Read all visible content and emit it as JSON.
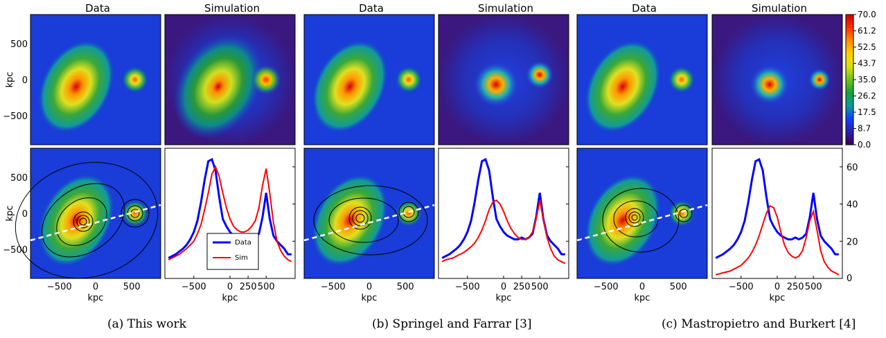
{
  "figure": {
    "column_titles": [
      "Data",
      "Simulation"
    ],
    "x_axis_label": "kpc",
    "y_axis_label": "kpc",
    "map_ticks": [
      "−500",
      "0",
      "500"
    ],
    "profile_x_ticks": [
      "−500",
      "0",
      "250",
      "500"
    ],
    "profile_x_tick_values": [
      -500,
      0,
      250,
      500
    ],
    "map_tick_values": [
      -500,
      0,
      500
    ]
  },
  "colorbar": {
    "ticks": [
      "70.0",
      "61.2",
      "52.5",
      "43.7",
      "35.0",
      "26.2",
      "17.5",
      "8.7",
      "0.0"
    ],
    "range": [
      0,
      70
    ]
  },
  "profile_y_ticks": [
    "20",
    "40",
    "60"
  ],
  "profile_y_tick_values": [
    20,
    40,
    60
  ],
  "legend": {
    "data_label": "Data",
    "sim_label": "Sim"
  },
  "captions": [
    "(a) This work",
    "(b) Springel and Farrar [3]",
    "(c) Mastropietro and Burkert [4]"
  ],
  "colors": {
    "data_line": "#0000ff",
    "sim_line": "#ff0000",
    "cut_line": "#ffffff"
  },
  "chart_data": [
    {
      "type": "line",
      "panel": "a",
      "x": [
        -850,
        -800,
        -750,
        -700,
        -650,
        -600,
        -550,
        -500,
        -450,
        -400,
        -350,
        -300,
        -250,
        -200,
        -150,
        -100,
        -50,
        0,
        50,
        100,
        150,
        200,
        250,
        300,
        350,
        400,
        450,
        500,
        550,
        600,
        650,
        700,
        750,
        800,
        850
      ],
      "series": [
        {
          "name": "Data",
          "values": [
            11,
            12,
            13,
            14.5,
            16,
            18,
            21,
            25,
            31,
            41,
            53,
            63,
            64,
            58,
            44,
            32,
            28,
            25,
            23,
            22,
            21,
            21,
            22,
            21,
            22,
            24,
            33,
            46,
            32,
            23,
            20,
            18,
            16,
            13,
            13
          ]
        },
        {
          "name": "Sim",
          "values": [
            10,
            11,
            12,
            13,
            14.5,
            16,
            18,
            20,
            24,
            29,
            37,
            46,
            56,
            60,
            55,
            46,
            38,
            32,
            28,
            26,
            25,
            25,
            26,
            28,
            31,
            38,
            50,
            59,
            46,
            30,
            20,
            15,
            12,
            10,
            9
          ]
        }
      ],
      "xlim": [
        -900,
        900
      ],
      "ylim": [
        0,
        70
      ]
    },
    {
      "type": "line",
      "panel": "b",
      "x": [
        -850,
        -800,
        -750,
        -700,
        -650,
        -600,
        -550,
        -500,
        -450,
        -400,
        -350,
        -300,
        -250,
        -200,
        -150,
        -100,
        -50,
        0,
        50,
        100,
        150,
        200,
        250,
        300,
        350,
        400,
        450,
        500,
        550,
        600,
        650,
        700,
        750,
        800,
        850
      ],
      "series": [
        {
          "name": "Data",
          "values": [
            11,
            12,
            13,
            14.5,
            16,
            18,
            21,
            25,
            31,
            41,
            53,
            63,
            64,
            58,
            44,
            32,
            28,
            25,
            23,
            22,
            21,
            21,
            22,
            21,
            22,
            24,
            33,
            46,
            32,
            23,
            20,
            18,
            16,
            13,
            13
          ]
        },
        {
          "name": "Sim",
          "values": [
            9,
            10,
            10.5,
            11,
            12,
            13,
            14,
            15.5,
            17,
            19,
            22,
            26,
            31,
            37,
            41,
            42,
            40,
            36,
            31,
            27,
            24,
            22,
            21,
            21,
            22,
            25,
            32,
            42,
            32,
            22,
            16,
            12,
            10,
            9,
            8
          ]
        }
      ],
      "xlim": [
        -900,
        900
      ],
      "ylim": [
        0,
        70
      ]
    },
    {
      "type": "line",
      "panel": "c",
      "x": [
        -850,
        -800,
        -750,
        -700,
        -650,
        -600,
        -550,
        -500,
        -450,
        -400,
        -350,
        -300,
        -250,
        -200,
        -150,
        -100,
        -50,
        0,
        50,
        100,
        150,
        200,
        250,
        300,
        350,
        400,
        450,
        500,
        550,
        600,
        650,
        700,
        750,
        800,
        850
      ],
      "series": [
        {
          "name": "Data",
          "values": [
            11,
            12,
            13,
            14.5,
            16,
            18,
            21,
            25,
            31,
            41,
            53,
            63,
            64,
            58,
            44,
            32,
            28,
            25,
            23,
            22,
            21,
            21,
            22,
            21,
            22,
            24,
            33,
            46,
            32,
            23,
            20,
            18,
            16,
            13,
            13
          ]
        },
        {
          "name": "Sim",
          "values": [
            2,
            2.5,
            3,
            3.5,
            4,
            5,
            6,
            7,
            9,
            11,
            14,
            18,
            23,
            29,
            35,
            39,
            38,
            33,
            25,
            18,
            14,
            12,
            11,
            12,
            15,
            22,
            31,
            36,
            26,
            15,
            9,
            6,
            4,
            3,
            2
          ]
        }
      ],
      "xlim": [
        -900,
        900
      ],
      "ylim": [
        0,
        70
      ]
    }
  ]
}
